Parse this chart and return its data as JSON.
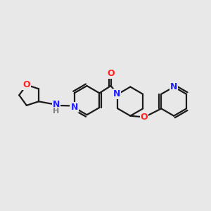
{
  "background_color": "#e8e8e8",
  "bond_color": "#1a1a1a",
  "atom_colors": {
    "N": "#2020ff",
    "O": "#ff2020",
    "NH_N": "#2020ff",
    "NH_H": "#808080",
    "C": "#1a1a1a"
  },
  "figsize": [
    3.0,
    3.0
  ],
  "dpi": 100
}
